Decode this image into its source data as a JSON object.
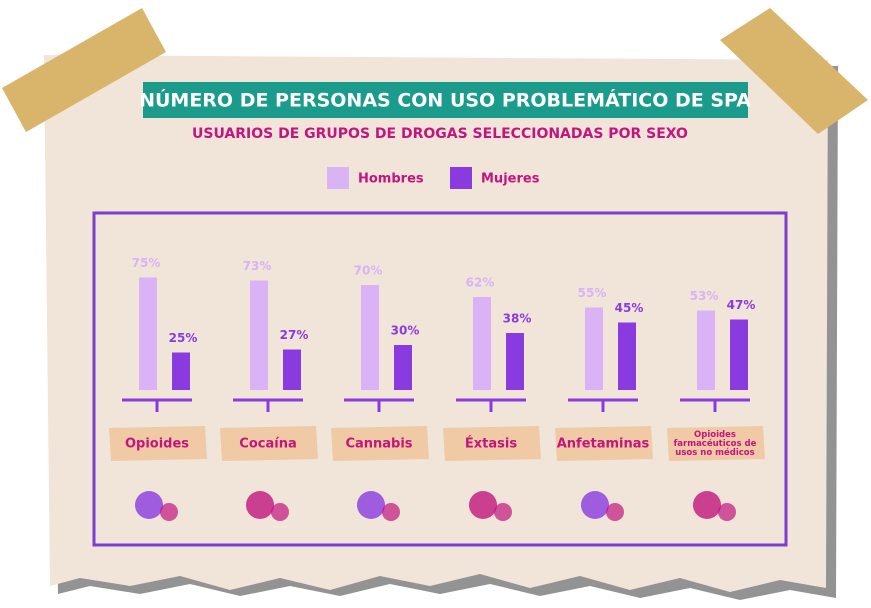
{
  "chart_data": {
    "type": "bar",
    "title": "NÚMERO DE PERSONAS CON USO PROBLEMÁTICO DE SPA",
    "subtitle": "USUARIOS DE GRUPOS DE DROGAS SELECCIONADAS POR SEXO",
    "categories": [
      "Opioides",
      "Cocaína",
      "Cannabis",
      "Éxtasis",
      "Anfetaminas",
      "Opioides farmacéuticos de usos no médicos"
    ],
    "series": [
      {
        "name": "Hombres",
        "color": "#d9b3f5",
        "values": [
          75,
          73,
          70,
          62,
          55,
          53
        ],
        "value_labels": [
          "75%",
          "73%",
          "70%",
          "62%",
          "55%",
          "53%"
        ]
      },
      {
        "name": "Mujeres",
        "color": "#8a3be0",
        "values": [
          25,
          27,
          30,
          38,
          45,
          47
        ],
        "value_labels": [
          "25%",
          "27%",
          "30%",
          "38%",
          "45%",
          "47%"
        ]
      }
    ]
  }
}
